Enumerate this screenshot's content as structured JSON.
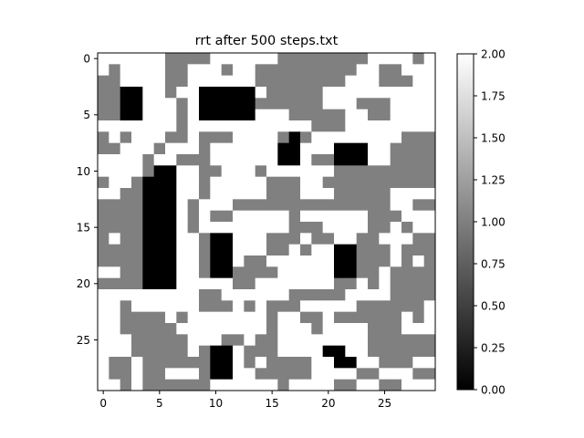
{
  "chart_data": {
    "type": "heatmap",
    "title": "rrt after 500 steps.txt",
    "xlabel": "",
    "ylabel": "",
    "grid": false,
    "xlim": [
      -0.5,
      29.5
    ],
    "ylim": [
      29.5,
      -0.5
    ],
    "x_ticks": [
      "0",
      "5",
      "10",
      "15",
      "20",
      "25"
    ],
    "y_ticks": [
      "0",
      "5",
      "10",
      "15",
      "20",
      "25"
    ],
    "colorbar": {
      "range": [
        0,
        2
      ],
      "ticks": [
        "0.00",
        "0.25",
        "0.50",
        "0.75",
        "1.00",
        "1.25",
        "1.50",
        "1.75",
        "2.00"
      ],
      "colormap": "gray"
    },
    "colors": {
      "0": "#000000",
      "1": "#808080",
      "2": "#ffffff"
    },
    "grid_values": [
      "222222111122222211111111222212",
      "212222112221221111111112211222",
      "112222112222221111111122211122",
      "110022122000002111112222222222",
      "110022212000001111112221112222",
      "110022212000002221111122112222",
      "222222212222222222211122222222",
      "121222112111222210122222222111",
      "112221222122222200222000221111",
      "222212211122222200211000221111",
      "222210022112221222222111111111",
      "122100022122222111221111111111",
      "221100022122222111222111112222",
      "111100021222111111111111112211",
      "111100021211222221222222111222",
      "111100021222222221112222112122",
      "121100022100222111211221122211",
      "111100022100222112122001112111",
      "111100022100211222222001112121",
      "221100022100111122222001121111",
      "111100022222112222222112121111",
      "222222222112222221111122221111",
      "221222222111212111222221111112",
      "221111212222222122112111111212",
      "221111122222222122212222111222",
      "222111112221121122222222111111",
      "222111112100211122220022111111",
      "211211111100212111122002211122",
      "211211222100221111122221122211",
      "221211111122222212222112211222"
    ]
  }
}
